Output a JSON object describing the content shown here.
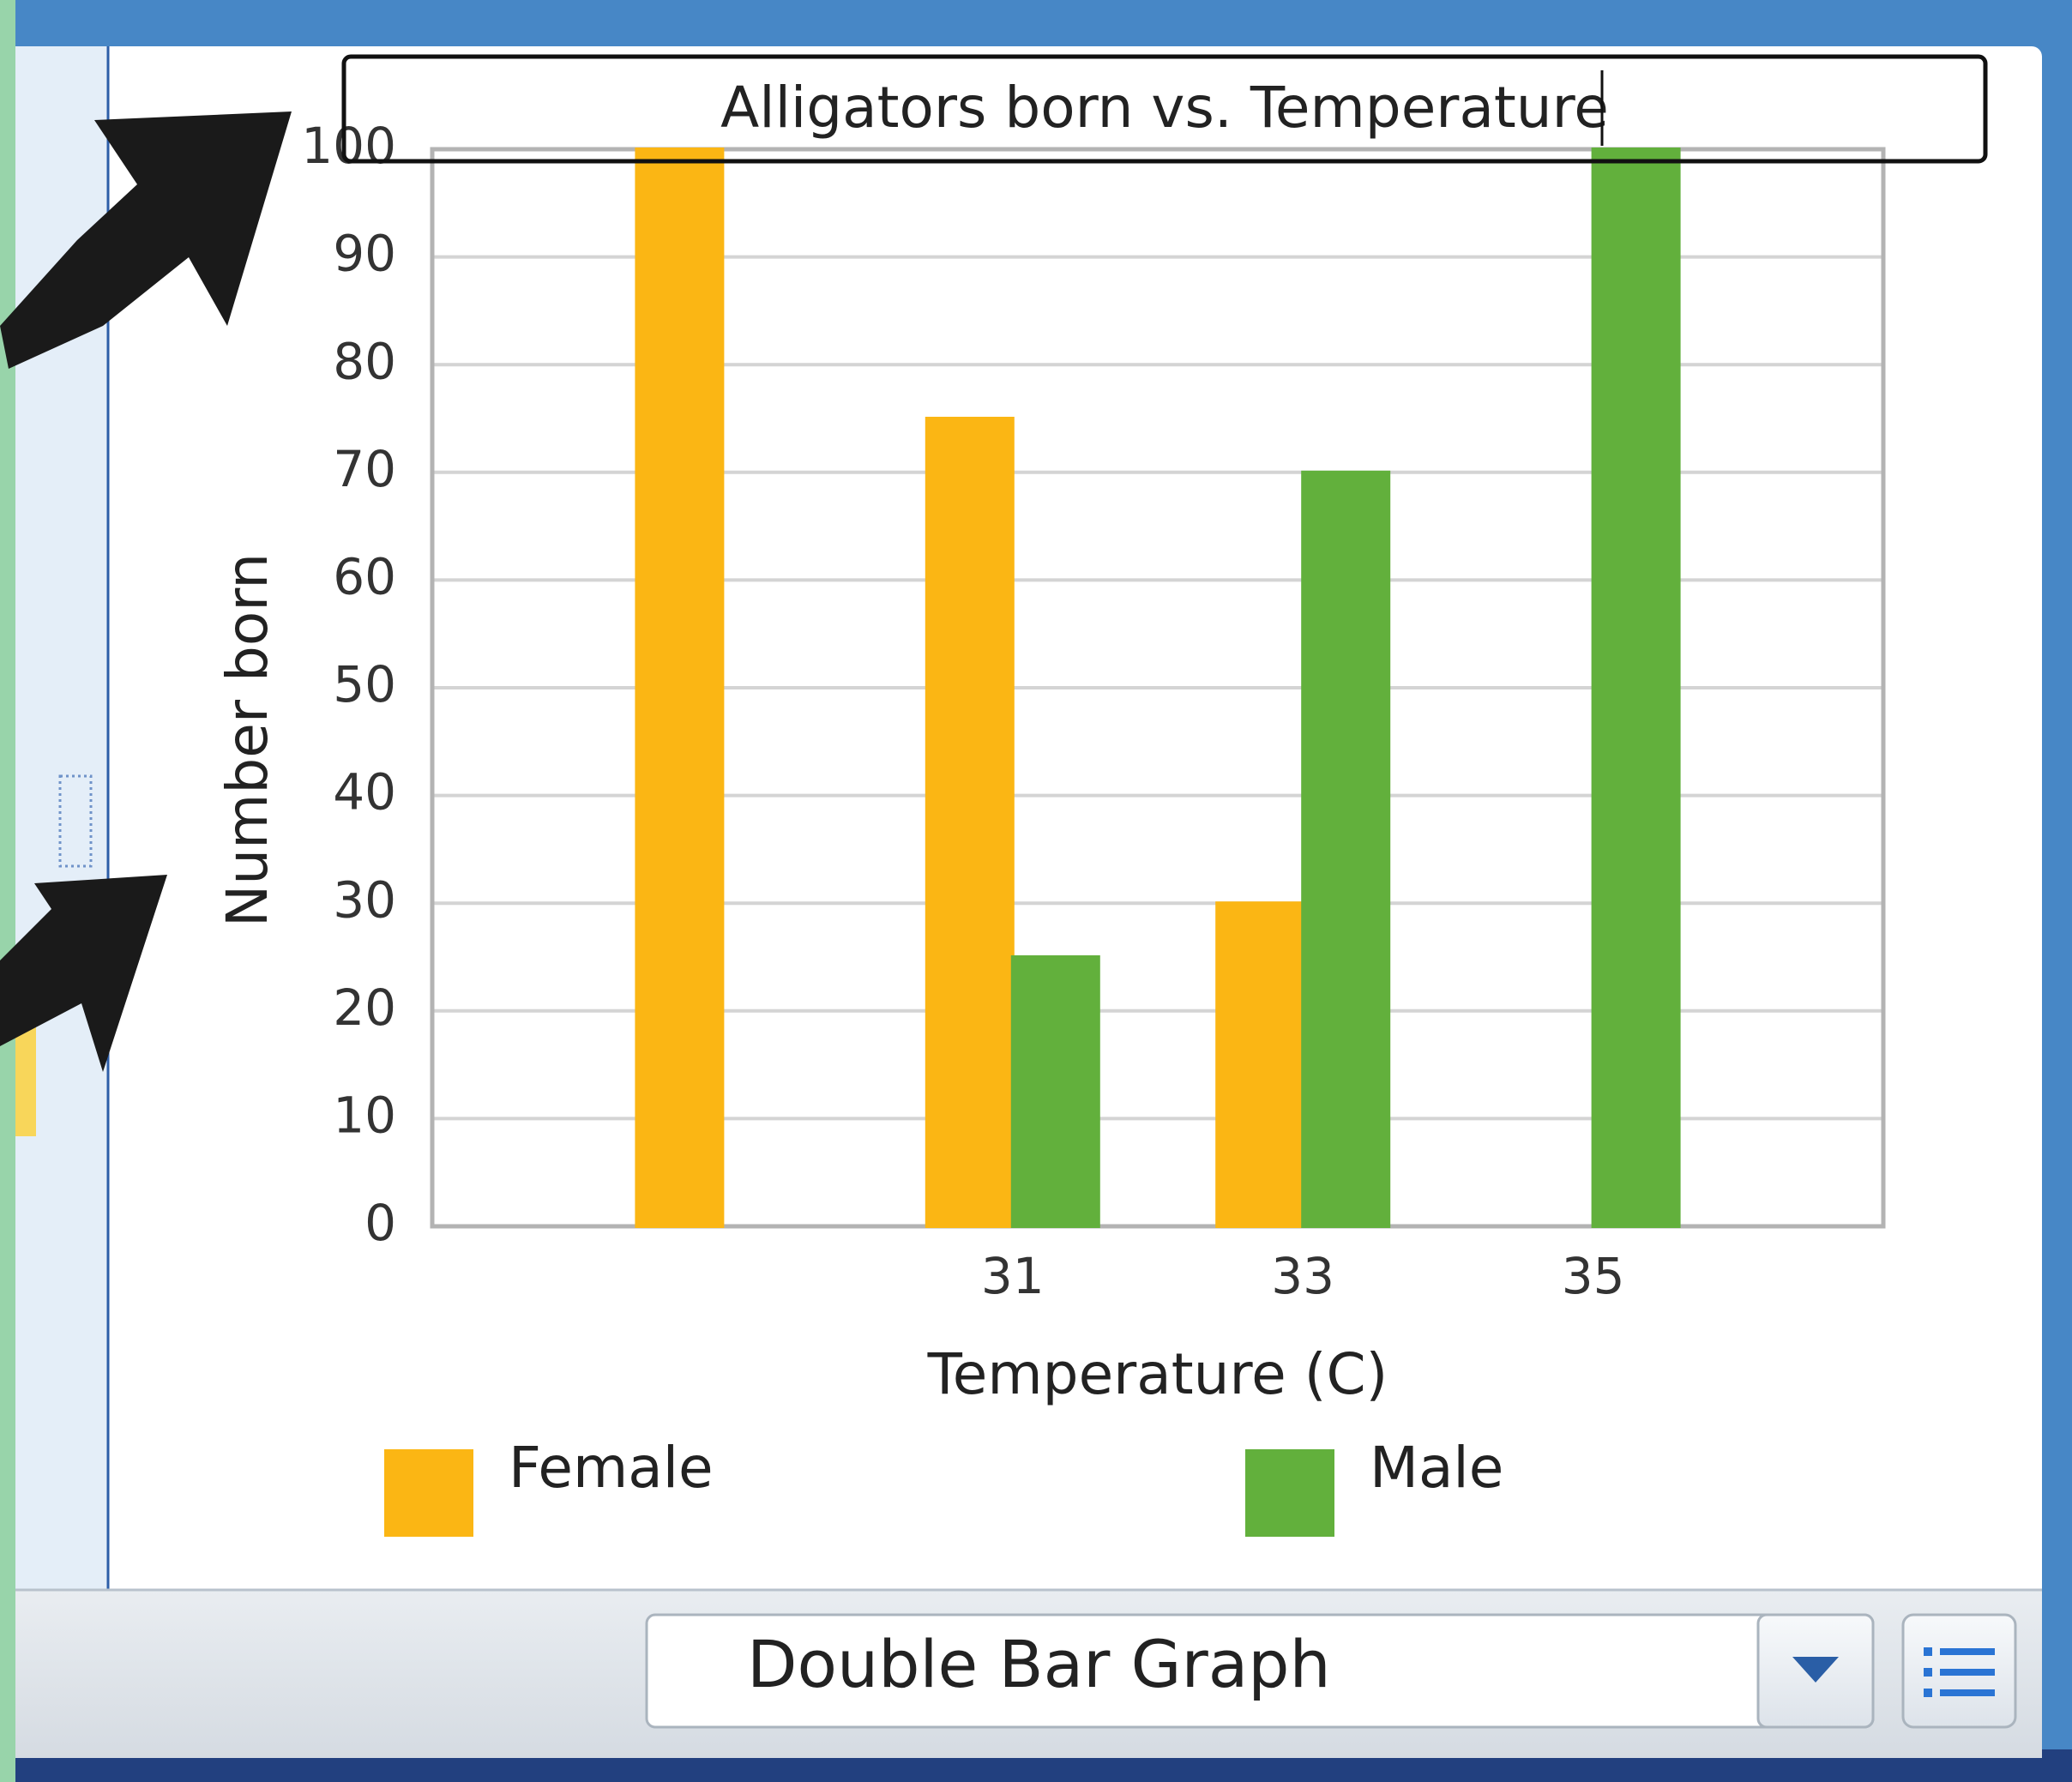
{
  "chart_data": {
    "type": "bar",
    "title": "Alligators born vs. Temperature",
    "categories": [
      null,
      "31",
      "33",
      "35"
    ],
    "series": [
      {
        "name": "Female",
        "color": "#fbb614",
        "values": [
          100,
          75,
          30,
          0
        ]
      },
      {
        "name": "Male",
        "color": "#62b03c",
        "values": [
          0,
          25,
          70,
          100
        ]
      }
    ],
    "x_label": "Temperature (C)",
    "y_label": "Number born",
    "ylim": [
      0,
      100
    ],
    "yticks": [
      0,
      10,
      20,
      30,
      40,
      50,
      60,
      70,
      80,
      90,
      100
    ],
    "grid": true
  },
  "toolbar": {
    "graph_type": "Double Bar Graph"
  }
}
